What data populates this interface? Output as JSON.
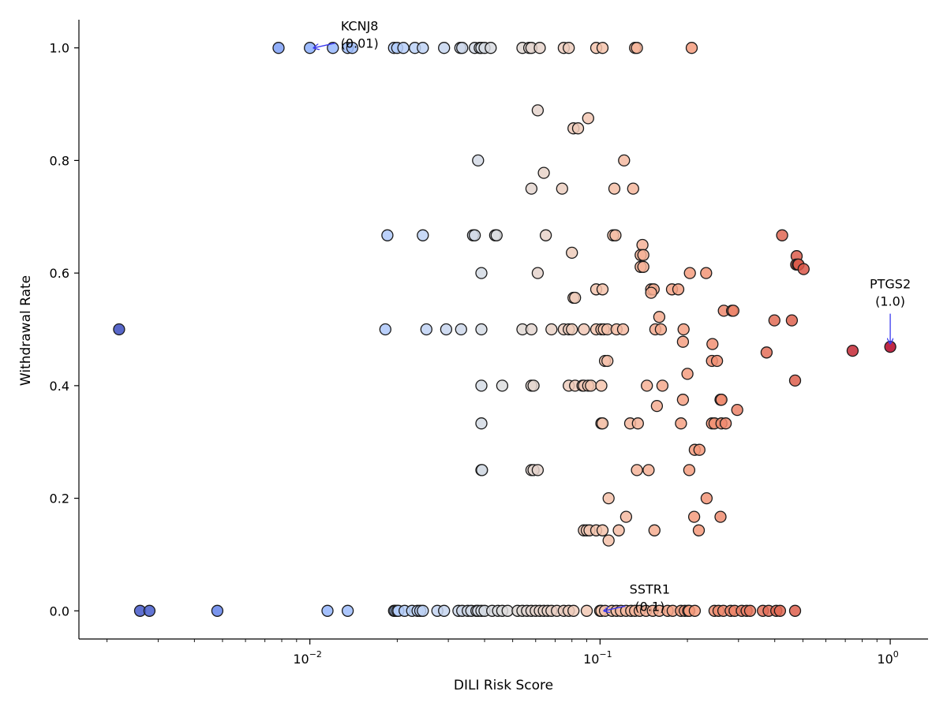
{
  "chart_data": {
    "type": "scatter",
    "xlabel": "DILI Risk Score",
    "ylabel": "Withdrawal Rate",
    "xscale": "log",
    "xlim": [
      0.0016,
      1.35
    ],
    "ylim": [
      -0.05,
      1.05
    ],
    "grid": false,
    "colormap": "coolwarm (by DILI Risk Score)",
    "x_ticks": [
      {
        "value": 0.01,
        "base": "10",
        "exp": "−2"
      },
      {
        "value": 0.1,
        "base": "10",
        "exp": "−1"
      },
      {
        "value": 1,
        "base": "10",
        "exp": "0"
      }
    ],
    "y_ticks": [
      {
        "value": 0.0,
        "label": "0.0"
      },
      {
        "value": 0.2,
        "label": "0.2"
      },
      {
        "value": 0.4,
        "label": "0.4"
      },
      {
        "value": 0.6,
        "label": "0.6"
      },
      {
        "value": 0.8,
        "label": "0.8"
      },
      {
        "value": 1.0,
        "label": "1.0"
      }
    ],
    "annotations": [
      {
        "name": "KCNJ8",
        "value": "(0.01)",
        "x": 0.01,
        "y": 1.0,
        "side": "left-arrow"
      },
      {
        "name": "SSTR1",
        "value": "(0.1)",
        "x": 0.1,
        "y": 0.0,
        "side": "left-arrow"
      },
      {
        "name": "PTGS2",
        "value": "(1.0)",
        "x": 1.0,
        "y": 0.469,
        "side": "down-arrow"
      }
    ],
    "points": [
      [
        0.0078,
        1.0
      ],
      [
        0.01,
        1.0
      ],
      [
        0.012,
        1.0
      ],
      [
        0.0135,
        1.0
      ],
      [
        0.014,
        1.0
      ],
      [
        0.0195,
        1.0
      ],
      [
        0.02,
        1.0
      ],
      [
        0.021,
        1.0
      ],
      [
        0.023,
        1.0
      ],
      [
        0.0245,
        1.0
      ],
      [
        0.029,
        1.0
      ],
      [
        0.033,
        1.0
      ],
      [
        0.0335,
        1.0
      ],
      [
        0.037,
        1.0
      ],
      [
        0.0385,
        1.0
      ],
      [
        0.039,
        1.0
      ],
      [
        0.04,
        1.0
      ],
      [
        0.042,
        1.0
      ],
      [
        0.054,
        1.0
      ],
      [
        0.057,
        1.0
      ],
      [
        0.058,
        1.0
      ],
      [
        0.062,
        1.0
      ],
      [
        0.075,
        1.0
      ],
      [
        0.078,
        1.0
      ],
      [
        0.097,
        1.0
      ],
      [
        0.102,
        1.0
      ],
      [
        0.132,
        1.0
      ],
      [
        0.134,
        1.0
      ],
      [
        0.207,
        1.0
      ],
      [
        0.061,
        0.889
      ],
      [
        0.091,
        0.875
      ],
      [
        0.081,
        0.857
      ],
      [
        0.084,
        0.857
      ],
      [
        0.038,
        0.8
      ],
      [
        0.121,
        0.8
      ],
      [
        0.064,
        0.778
      ],
      [
        0.058,
        0.75
      ],
      [
        0.074,
        0.75
      ],
      [
        0.112,
        0.75
      ],
      [
        0.13,
        0.75
      ],
      [
        0.0185,
        0.667
      ],
      [
        0.0245,
        0.667
      ],
      [
        0.0365,
        0.667
      ],
      [
        0.037,
        0.667
      ],
      [
        0.0435,
        0.667
      ],
      [
        0.044,
        0.667
      ],
      [
        0.065,
        0.667
      ],
      [
        0.111,
        0.667
      ],
      [
        0.113,
        0.667
      ],
      [
        0.14,
        0.65
      ],
      [
        0.424,
        0.667
      ],
      [
        0.08,
        0.636
      ],
      [
        0.138,
        0.632
      ],
      [
        0.141,
        0.632
      ],
      [
        0.476,
        0.63
      ],
      [
        0.138,
        0.611
      ],
      [
        0.141,
        0.611
      ],
      [
        0.474,
        0.615
      ],
      [
        0.48,
        0.615
      ],
      [
        0.483,
        0.615
      ],
      [
        0.503,
        0.607
      ],
      [
        0.039,
        0.6
      ],
      [
        0.061,
        0.6
      ],
      [
        0.204,
        0.6
      ],
      [
        0.232,
        0.6
      ],
      [
        0.15,
        0.571
      ],
      [
        0.153,
        0.571
      ],
      [
        0.177,
        0.571
      ],
      [
        0.186,
        0.571
      ],
      [
        0.097,
        0.571
      ],
      [
        0.102,
        0.571
      ],
      [
        0.15,
        0.565
      ],
      [
        0.081,
        0.556
      ],
      [
        0.082,
        0.556
      ],
      [
        0.267,
        0.533
      ],
      [
        0.285,
        0.533
      ],
      [
        0.288,
        0.533
      ],
      [
        0.16,
        0.522
      ],
      [
        0.399,
        0.516
      ],
      [
        0.458,
        0.516
      ],
      [
        0.0022,
        0.5
      ],
      [
        0.0182,
        0.5
      ],
      [
        0.0252,
        0.5
      ],
      [
        0.0295,
        0.5
      ],
      [
        0.0332,
        0.5
      ],
      [
        0.039,
        0.5
      ],
      [
        0.054,
        0.5
      ],
      [
        0.058,
        0.5
      ],
      [
        0.068,
        0.5
      ],
      [
        0.075,
        0.5
      ],
      [
        0.078,
        0.5
      ],
      [
        0.08,
        0.5
      ],
      [
        0.088,
        0.5
      ],
      [
        0.097,
        0.5
      ],
      [
        0.101,
        0.5
      ],
      [
        0.103,
        0.5
      ],
      [
        0.106,
        0.5
      ],
      [
        0.114,
        0.5
      ],
      [
        0.12,
        0.5
      ],
      [
        0.155,
        0.5
      ],
      [
        0.162,
        0.5
      ],
      [
        0.194,
        0.5
      ],
      [
        0.193,
        0.478
      ],
      [
        0.244,
        0.474
      ],
      [
        0.375,
        0.459
      ],
      [
        0.742,
        0.462
      ],
      [
        1.0,
        0.469
      ],
      [
        0.104,
        0.444
      ],
      [
        0.106,
        0.444
      ],
      [
        0.2,
        0.421
      ],
      [
        0.243,
        0.444
      ],
      [
        0.253,
        0.444
      ],
      [
        0.039,
        0.4
      ],
      [
        0.046,
        0.4
      ],
      [
        0.058,
        0.4
      ],
      [
        0.059,
        0.4
      ],
      [
        0.078,
        0.4
      ],
      [
        0.082,
        0.4
      ],
      [
        0.087,
        0.4
      ],
      [
        0.088,
        0.4
      ],
      [
        0.091,
        0.4
      ],
      [
        0.093,
        0.4
      ],
      [
        0.101,
        0.4
      ],
      [
        0.145,
        0.4
      ],
      [
        0.164,
        0.4
      ],
      [
        0.47,
        0.409
      ],
      [
        0.193,
        0.375
      ],
      [
        0.26,
        0.375
      ],
      [
        0.262,
        0.375
      ],
      [
        0.157,
        0.364
      ],
      [
        0.297,
        0.357
      ],
      [
        0.039,
        0.333
      ],
      [
        0.101,
        0.333
      ],
      [
        0.102,
        0.333
      ],
      [
        0.127,
        0.333
      ],
      [
        0.135,
        0.333
      ],
      [
        0.19,
        0.333
      ],
      [
        0.243,
        0.333
      ],
      [
        0.248,
        0.333
      ],
      [
        0.262,
        0.333
      ],
      [
        0.271,
        0.333
      ],
      [
        0.212,
        0.286
      ],
      [
        0.22,
        0.286
      ],
      [
        0.039,
        0.25
      ],
      [
        0.0392,
        0.25
      ],
      [
        0.058,
        0.25
      ],
      [
        0.059,
        0.25
      ],
      [
        0.061,
        0.25
      ],
      [
        0.134,
        0.25
      ],
      [
        0.147,
        0.25
      ],
      [
        0.203,
        0.25
      ],
      [
        0.107,
        0.2
      ],
      [
        0.233,
        0.2
      ],
      [
        0.123,
        0.167
      ],
      [
        0.211,
        0.167
      ],
      [
        0.26,
        0.167
      ],
      [
        0.088,
        0.143
      ],
      [
        0.09,
        0.143
      ],
      [
        0.092,
        0.143
      ],
      [
        0.097,
        0.143
      ],
      [
        0.102,
        0.143
      ],
      [
        0.116,
        0.143
      ],
      [
        0.154,
        0.143
      ],
      [
        0.219,
        0.143
      ],
      [
        0.107,
        0.125
      ],
      [
        0.0026,
        0.0
      ],
      [
        0.0028,
        0.0
      ],
      [
        0.0048,
        0.0
      ],
      [
        0.0115,
        0.0
      ],
      [
        0.0135,
        0.0
      ],
      [
        0.0195,
        0.0
      ],
      [
        0.0197,
        0.0
      ],
      [
        0.02,
        0.0
      ],
      [
        0.0202,
        0.0
      ],
      [
        0.0212,
        0.0
      ],
      [
        0.0225,
        0.0
      ],
      [
        0.0235,
        0.0
      ],
      [
        0.024,
        0.0
      ],
      [
        0.0245,
        0.0
      ],
      [
        0.0275,
        0.0
      ],
      [
        0.029,
        0.0
      ],
      [
        0.0325,
        0.0
      ],
      [
        0.0335,
        0.0
      ],
      [
        0.035,
        0.0
      ],
      [
        0.036,
        0.0
      ],
      [
        0.0375,
        0.0
      ],
      [
        0.038,
        0.0
      ],
      [
        0.039,
        0.0
      ],
      [
        0.04,
        0.0
      ],
      [
        0.0425,
        0.0
      ],
      [
        0.0445,
        0.0
      ],
      [
        0.046,
        0.0
      ],
      [
        0.048,
        0.0
      ],
      [
        0.052,
        0.0
      ],
      [
        0.054,
        0.0
      ],
      [
        0.056,
        0.0
      ],
      [
        0.058,
        0.0
      ],
      [
        0.06,
        0.0
      ],
      [
        0.062,
        0.0
      ],
      [
        0.064,
        0.0
      ],
      [
        0.066,
        0.0
      ],
      [
        0.068,
        0.0
      ],
      [
        0.071,
        0.0
      ],
      [
        0.075,
        0.0
      ],
      [
        0.078,
        0.0
      ],
      [
        0.081,
        0.0
      ],
      [
        0.09,
        0.0
      ],
      [
        0.1,
        0.0
      ],
      [
        0.101,
        0.0
      ],
      [
        0.104,
        0.0
      ],
      [
        0.11,
        0.0
      ],
      [
        0.114,
        0.0
      ],
      [
        0.118,
        0.0
      ],
      [
        0.123,
        0.0
      ],
      [
        0.128,
        0.0
      ],
      [
        0.132,
        0.0
      ],
      [
        0.137,
        0.0
      ],
      [
        0.144,
        0.0
      ],
      [
        0.152,
        0.0
      ],
      [
        0.16,
        0.0
      ],
      [
        0.171,
        0.0
      ],
      [
        0.178,
        0.0
      ],
      [
        0.19,
        0.0
      ],
      [
        0.196,
        0.0
      ],
      [
        0.201,
        0.0
      ],
      [
        0.203,
        0.0
      ],
      [
        0.212,
        0.0
      ],
      [
        0.248,
        0.0
      ],
      [
        0.256,
        0.0
      ],
      [
        0.266,
        0.0
      ],
      [
        0.282,
        0.0
      ],
      [
        0.291,
        0.0
      ],
      [
        0.308,
        0.0
      ],
      [
        0.32,
        0.0
      ],
      [
        0.329,
        0.0
      ],
      [
        0.364,
        0.0
      ],
      [
        0.381,
        0.0
      ],
      [
        0.405,
        0.0
      ],
      [
        0.417,
        0.0
      ],
      [
        0.47,
        0.0
      ]
    ]
  }
}
